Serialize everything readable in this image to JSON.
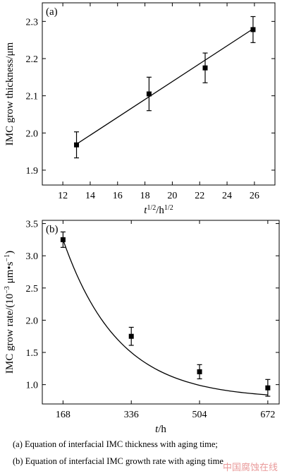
{
  "chart_data": [
    {
      "type": "line",
      "panel_label": "(a)",
      "xlabel_main": "t",
      "xlabel_sup1": "1/2",
      "xlabel_mid": "/h",
      "xlabel_sup2": "1/2",
      "ylabel": "IMC grow thickness/μm",
      "xlim": [
        10.5,
        27.5
      ],
      "ylim": [
        1.86,
        2.35
      ],
      "xticks": [
        12,
        14,
        16,
        18,
        20,
        22,
        24,
        26
      ],
      "yticks": [
        1.9,
        2.0,
        2.1,
        2.2,
        2.3
      ],
      "ytick_labels": [
        "1.9",
        "2.0",
        "2.1",
        "2.2",
        "2.3"
      ],
      "points": [
        {
          "x": 13.0,
          "y": 1.968,
          "err": 0.035
        },
        {
          "x": 18.3,
          "y": 2.105,
          "err": 0.045
        },
        {
          "x": 22.4,
          "y": 2.175,
          "err": 0.04
        },
        {
          "x": 25.9,
          "y": 2.278,
          "err": 0.035
        }
      ],
      "fit": {
        "x1": 13.0,
        "y1": 1.97,
        "x2": 25.9,
        "y2": 2.28
      }
    },
    {
      "type": "line",
      "panel_label": "(b)",
      "xlabel_main": "t",
      "xlabel_mid": "/h",
      "ylabel_pre": "IMC grow rate/(10",
      "ylabel_sup1": "−3",
      "ylabel_mid": " μm•s",
      "ylabel_sup2": "−1",
      "ylabel_post": ")",
      "xlim": [
        117,
        700
      ],
      "ylim": [
        0.7,
        3.55
      ],
      "xticks": [
        168,
        336,
        504,
        672
      ],
      "yticks": [
        1.0,
        1.5,
        2.0,
        2.5,
        3.0,
        3.5
      ],
      "ytick_labels": [
        "1.0",
        "1.5",
        "2.0",
        "2.5",
        "3.0",
        "3.5"
      ],
      "points": [
        {
          "x": 168,
          "y": 3.25,
          "err": 0.12
        },
        {
          "x": 336,
          "y": 1.75,
          "err": 0.14
        },
        {
          "x": 504,
          "y": 1.2,
          "err": 0.11
        },
        {
          "x": 672,
          "y": 0.95,
          "err": 0.13
        }
      ],
      "fit_curve": {
        "a": 0.78,
        "b": 2.47,
        "k": 0.00734
      }
    }
  ],
  "captions": {
    "a": "(a)  Equation  of  interfacial  IMC  thickness  with  aging  time;",
    "b": "(b) Equation of interfacial IMC growth rate with aging time"
  },
  "watermark": "中国腐蚀在线"
}
